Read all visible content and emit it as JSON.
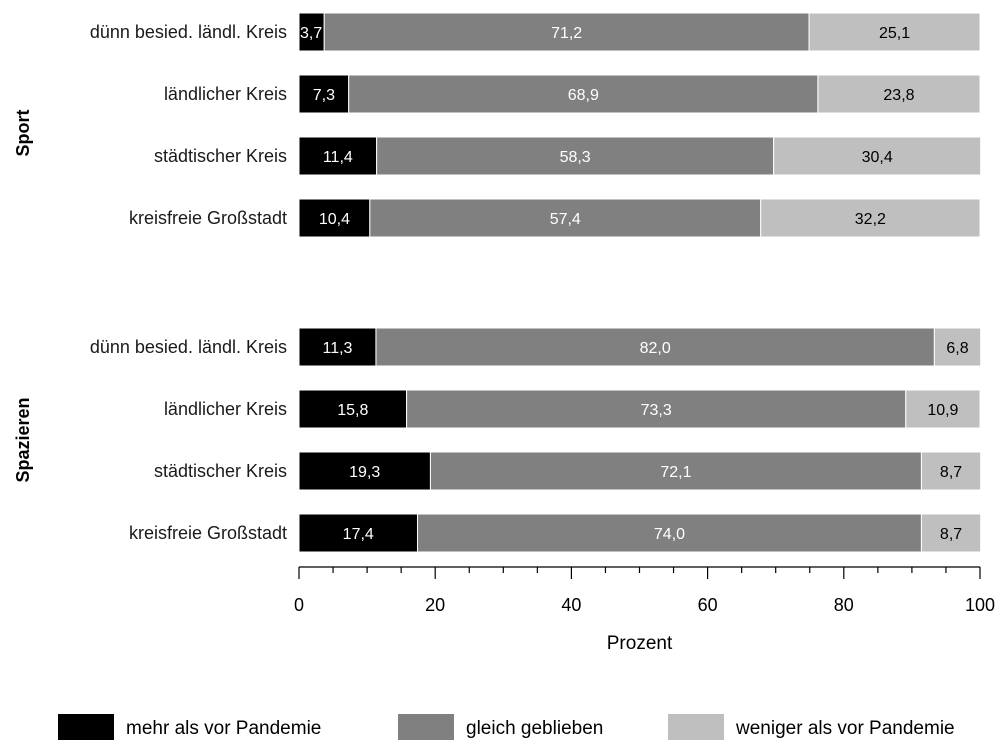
{
  "chart_data": {
    "type": "bar",
    "orientation": "horizontal",
    "stacked": true,
    "xlabel": "Prozent",
    "xlim": [
      0,
      100
    ],
    "xticks": [
      0,
      20,
      40,
      60,
      80,
      100
    ],
    "minor_ticks": [
      5,
      10,
      15,
      25,
      30,
      35,
      45,
      50,
      55,
      65,
      70,
      75,
      85,
      90,
      95
    ],
    "legend_position": "bottom",
    "grid": false,
    "series": [
      {
        "name": "mehr als vor Pandemie",
        "color": "#000000",
        "label_color": "#ffffff"
      },
      {
        "name": "gleich geblieben",
        "color": "#808080",
        "label_color": "#ffffff"
      },
      {
        "name": "weniger als vor Pandemie",
        "color": "#bfbfbf",
        "label_color": "#000000"
      }
    ],
    "groups": [
      {
        "name": "Sport",
        "categories": [
          {
            "label": "dünn besied. ländl. Kreis",
            "values": [
              3.7,
              71.2,
              25.1
            ],
            "value_labels": [
              "3,7",
              "71,2",
              "25,1"
            ]
          },
          {
            "label": "ländlicher Kreis",
            "values": [
              7.3,
              68.9,
              23.8
            ],
            "value_labels": [
              "7,3",
              "68,9",
              "23,8"
            ]
          },
          {
            "label": "städtischer Kreis",
            "values": [
              11.4,
              58.3,
              30.4
            ],
            "value_labels": [
              "11,4",
              "58,3",
              "30,4"
            ]
          },
          {
            "label": "kreisfreie Großstadt",
            "values": [
              10.4,
              57.4,
              32.2
            ],
            "value_labels": [
              "10,4",
              "57,4",
              "32,2"
            ]
          }
        ]
      },
      {
        "name": "Spazieren",
        "categories": [
          {
            "label": "dünn besied. ländl. Kreis",
            "values": [
              11.3,
              82.0,
              6.8
            ],
            "value_labels": [
              "11,3",
              "82,0",
              "6,8"
            ]
          },
          {
            "label": "ländlicher Kreis",
            "values": [
              15.8,
              73.3,
              10.9
            ],
            "value_labels": [
              "15,8",
              "73,3",
              "10,9"
            ]
          },
          {
            "label": "städtischer Kreis",
            "values": [
              19.3,
              72.1,
              8.7
            ],
            "value_labels": [
              "19,3",
              "72,1",
              "8,7"
            ]
          },
          {
            "label": "kreisfreie Großstadt",
            "values": [
              17.4,
              74.0,
              8.7
            ],
            "value_labels": [
              "17,4",
              "74,0",
              "8,7"
            ]
          }
        ]
      }
    ]
  }
}
